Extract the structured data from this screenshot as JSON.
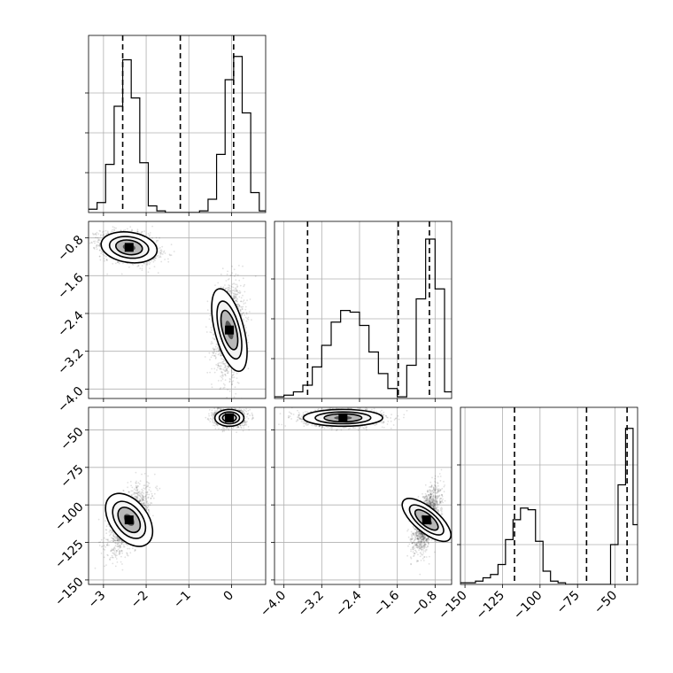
{
  "chart_data": {
    "type": "corner",
    "grid": true,
    "parameters": [
      {
        "ticks": [
          -3,
          -2,
          -1,
          0
        ],
        "tick_labels": [
          "−3",
          "−2",
          "−1",
          "0"
        ],
        "range": [
          -3.35,
          0.8
        ]
      },
      {
        "ticks": [
          -4.0,
          -3.2,
          -2.4,
          -1.6,
          -0.8
        ],
        "tick_labels": [
          "−4.0",
          "−3.2",
          "−2.4",
          "−1.6",
          "−0.8"
        ],
        "range": [
          -4.2,
          -0.45
        ]
      },
      {
        "ticks": [
          -150,
          -125,
          -100,
          -75,
          -50
        ],
        "tick_labels": [
          "−150",
          "−125",
          "−100",
          "−75",
          "−50"
        ],
        "range": [
          -153,
          -35
        ]
      }
    ],
    "quantile_lines": [
      [
        -2.55,
        -1.2,
        0.05
      ],
      [
        -3.5,
        -1.58,
        -0.92
      ],
      [
        -117,
        -69,
        -42
      ]
    ],
    "histograms": [
      {
        "param": 0,
        "bin_edges": [
          -3.35,
          -3.15,
          -2.95,
          -2.75,
          -2.55,
          -2.35,
          -2.15,
          -1.95,
          -1.75,
          -1.55,
          -1.35,
          -1.15,
          -0.95,
          -0.75,
          -0.55,
          -0.35,
          -0.15,
          0.05,
          0.25,
          0.45,
          0.65,
          0.8
        ],
        "counts": [
          0.02,
          0.06,
          0.29,
          0.64,
          0.92,
          0.69,
          0.3,
          0.04,
          0.01,
          0,
          0,
          0,
          0,
          0.01,
          0.08,
          0.35,
          0.8,
          0.94,
          0.6,
          0.12,
          0.01
        ]
      },
      {
        "param": 1,
        "bin_edges": [
          -4.2,
          -4.0,
          -3.8,
          -3.6,
          -3.4,
          -3.2,
          -3.0,
          -2.8,
          -2.6,
          -2.4,
          -2.2,
          -2.0,
          -1.8,
          -1.6,
          -1.4,
          -1.2,
          -1.0,
          -0.8,
          -0.6,
          -0.45
        ],
        "counts": [
          0.01,
          0.02,
          0.04,
          0.08,
          0.19,
          0.32,
          0.46,
          0.53,
          0.52,
          0.44,
          0.28,
          0.15,
          0.06,
          0.01,
          0.2,
          0.6,
          0.96,
          0.66,
          0.04
        ]
      },
      {
        "param": 2,
        "bin_edges": [
          -153,
          -148,
          -143,
          -138,
          -133,
          -128,
          -123,
          -118,
          -113,
          -108,
          -103,
          -98,
          -93,
          -88,
          -83,
          -78,
          -73,
          -68,
          -63,
          -58,
          -53,
          -48,
          -43,
          -38,
          -35
        ],
        "counts": [
          0.01,
          0.01,
          0.02,
          0.04,
          0.06,
          0.12,
          0.27,
          0.39,
          0.46,
          0.45,
          0.26,
          0.08,
          0.02,
          0.01,
          0,
          0,
          0,
          0,
          0,
          0,
          0.24,
          0.6,
          0.94,
          0.36
        ]
      }
    ],
    "modes_2d": [
      {
        "x_param": 0,
        "y_param": 1,
        "blobs": [
          {
            "cx": -2.4,
            "cy": -1.0,
            "sx": 0.33,
            "sy": 0.16,
            "rho": -0.3,
            "w": 0.5
          },
          {
            "cx": -0.05,
            "cy": -2.75,
            "sx": 0.17,
            "sy": 0.45,
            "rho": 0.1,
            "w": 0.5
          }
        ]
      },
      {
        "x_param": 0,
        "y_param": 2,
        "blobs": [
          {
            "cx": -2.4,
            "cy": -110,
            "sx": 0.22,
            "sy": 10,
            "rho": 0.55,
            "w": 0.5
          },
          {
            "cx": -0.05,
            "cy": -42,
            "sx": 0.17,
            "sy": 2.8,
            "rho": 0.0,
            "w": 0.5
          }
        ]
      },
      {
        "x_param": 1,
        "y_param": 2,
        "blobs": [
          {
            "cx": -2.75,
            "cy": -42,
            "sx": 0.42,
            "sy": 2.8,
            "rho": 0.0,
            "w": 0.5
          },
          {
            "cx": -0.98,
            "cy": -110,
            "sx": 0.13,
            "sy": 10,
            "rho": 0.6,
            "w": 0.5
          }
        ]
      }
    ]
  }
}
